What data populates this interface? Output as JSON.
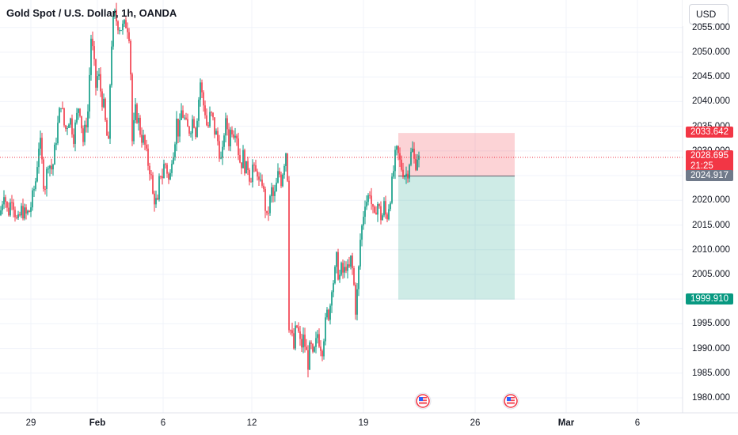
{
  "header": {
    "title": "Gold Spot / U.S. Dollar, 1h, OANDA",
    "currency_button": "USD"
  },
  "price_axis": {
    "ticks": [
      "2055.000",
      "2050.000",
      "2045.000",
      "2040.000",
      "2035.000",
      "2030.000",
      "2025.000",
      "2020.000",
      "2015.000",
      "2010.000",
      "2005.000",
      "2000.000",
      "1995.000",
      "1990.000",
      "1985.000",
      "1980.000"
    ]
  },
  "time_axis": {
    "ticks": [
      {
        "label": "29",
        "bold": false
      },
      {
        "label": "Feb",
        "bold": true
      },
      {
        "label": "6",
        "bold": false
      },
      {
        "label": "12",
        "bold": false
      },
      {
        "label": "19",
        "bold": false
      },
      {
        "label": "26",
        "bold": false
      },
      {
        "label": "Mar",
        "bold": true
      },
      {
        "label": "6",
        "bold": false
      }
    ]
  },
  "price_labels": {
    "stop_loss": {
      "value": "2033.642",
      "price": 2033.642,
      "color": "#f23645"
    },
    "current": {
      "value": "2028.695",
      "countdown": "21:25",
      "price": 2028.695,
      "color": "#f23645"
    },
    "entry": {
      "value": "2024.917",
      "price": 2024.917,
      "color": "#707a8a"
    },
    "take_profit": {
      "value": "1999.910",
      "price": 1999.91,
      "color": "#089981"
    }
  },
  "position_tool": {
    "type": "short",
    "entry": 2024.917,
    "stop": 2033.642,
    "target": 1999.91,
    "risk_color": "#f23645",
    "reward_color": "#089981"
  },
  "events": [
    {
      "icon": "us-flag-icon",
      "date": "Feb 21"
    },
    {
      "icon": "us-flag-icon",
      "date": "Feb 28"
    }
  ],
  "colors": {
    "up": "#089981",
    "down": "#f23645",
    "grid": "#f0f3fa"
  },
  "chart_data": {
    "type": "candlestick",
    "symbol": "XAUUSD",
    "interval": "1h",
    "ylim": [
      1978,
      2058
    ],
    "path": [
      [
        0,
        2017
      ],
      [
        5,
        2022
      ],
      [
        10,
        2017
      ],
      [
        15,
        2021
      ],
      [
        22,
        2015
      ],
      [
        27,
        2018
      ],
      [
        33,
        2017
      ],
      [
        38,
        2018
      ],
      [
        45,
        2024
      ],
      [
        50,
        2033
      ],
      [
        56,
        2022
      ],
      [
        61,
        2028
      ],
      [
        66,
        2026
      ],
      [
        72,
        2034
      ],
      [
        77,
        2040
      ],
      [
        82,
        2034
      ],
      [
        88,
        2037
      ],
      [
        93,
        2033
      ],
      [
        100,
        2040
      ],
      [
        105,
        2032
      ],
      [
        111,
        2038
      ],
      [
        115,
        2053
      ],
      [
        118,
        2049
      ],
      [
        121,
        2043
      ],
      [
        124,
        2046
      ],
      [
        128,
        2041
      ],
      [
        131,
        2039
      ],
      [
        134,
        2034
      ],
      [
        137,
        2031
      ],
      [
        140,
        2050
      ],
      [
        144,
        2058
      ],
      [
        148,
        2056
      ],
      [
        152,
        2055
      ],
      [
        156,
        2055
      ],
      [
        160,
        2056
      ],
      [
        164,
        2053
      ],
      [
        167,
        2032
      ],
      [
        171,
        2038
      ],
      [
        175,
        2036
      ],
      [
        178,
        2033
      ],
      [
        182,
        2032
      ],
      [
        186,
        2028
      ],
      [
        190,
        2026
      ],
      [
        193,
        2021
      ],
      [
        196,
        2020
      ],
      [
        199,
        2019
      ],
      [
        202,
        2026
      ],
      [
        205,
        2025
      ],
      [
        208,
        2028
      ],
      [
        211,
        2026
      ],
      [
        214,
        2023
      ],
      [
        217,
        2029
      ],
      [
        220,
        2031
      ],
      [
        223,
        2036
      ],
      [
        226,
        2033
      ],
      [
        229,
        2038
      ],
      [
        232,
        2037
      ],
      [
        235,
        2035
      ],
      [
        238,
        2034
      ],
      [
        241,
        2035
      ],
      [
        244,
        2037
      ],
      [
        247,
        2034
      ],
      [
        250,
        2039
      ],
      [
        253,
        2044
      ],
      [
        256,
        2040
      ],
      [
        259,
        2038
      ],
      [
        262,
        2034
      ],
      [
        265,
        2037
      ],
      [
        268,
        2037
      ],
      [
        271,
        2034
      ],
      [
        274,
        2033
      ],
      [
        277,
        2030
      ],
      [
        280,
        2027
      ],
      [
        283,
        2034
      ],
      [
        286,
        2036
      ],
      [
        289,
        2032
      ],
      [
        292,
        2035
      ],
      [
        295,
        2034
      ],
      [
        298,
        2035
      ],
      [
        301,
        2030
      ],
      [
        304,
        2027
      ],
      [
        307,
        2029
      ],
      [
        310,
        2026
      ],
      [
        313,
        2027
      ],
      [
        316,
        2024
      ],
      [
        319,
        2027
      ],
      [
        322,
        2025
      ],
      [
        325,
        2026
      ],
      [
        328,
        2022
      ],
      [
        331,
        2024
      ],
      [
        334,
        2020
      ],
      [
        337,
        2016
      ],
      [
        340,
        2019
      ],
      [
        343,
        2022
      ],
      [
        346,
        2020
      ],
      [
        349,
        2023
      ],
      [
        352,
        2026
      ],
      [
        355,
        2024
      ],
      [
        358,
        2027
      ],
      [
        361,
        2030
      ],
      [
        363,
        2025
      ],
      [
        365,
        1995
      ],
      [
        368,
        1993
      ],
      [
        371,
        1990
      ],
      [
        374,
        1995
      ],
      [
        377,
        1993
      ],
      [
        380,
        1990
      ],
      [
        383,
        1992
      ],
      [
        386,
        1990
      ],
      [
        389,
        1987
      ],
      [
        392,
        1991
      ],
      [
        395,
        1988
      ],
      [
        398,
        1990
      ],
      [
        401,
        1993
      ],
      [
        404,
        1991
      ],
      [
        407,
        1990
      ],
      [
        410,
        1994
      ],
      [
        413,
        1997
      ],
      [
        416,
        1997
      ],
      [
        419,
        2003
      ],
      [
        422,
        2004
      ],
      [
        425,
        2008
      ],
      [
        428,
        2004
      ],
      [
        431,
        2006
      ],
      [
        434,
        2005
      ],
      [
        437,
        2007
      ],
      [
        440,
        2005
      ],
      [
        443,
        2008
      ],
      [
        446,
        2005
      ],
      [
        449,
        1998
      ],
      [
        452,
        2003
      ],
      [
        455,
        2012
      ],
      [
        458,
        2016
      ],
      [
        461,
        2020
      ],
      [
        464,
        2020
      ],
      [
        467,
        2022
      ],
      [
        470,
        2018
      ],
      [
        473,
        2016
      ],
      [
        476,
        2020
      ],
      [
        479,
        2018
      ],
      [
        482,
        2016
      ],
      [
        485,
        2019
      ],
      [
        488,
        2016
      ],
      [
        491,
        2019
      ],
      [
        494,
        2022
      ],
      [
        497,
        2026
      ],
      [
        500,
        2030
      ],
      [
        503,
        2029
      ],
      [
        506,
        2027
      ],
      [
        509,
        2026
      ],
      [
        512,
        2025
      ],
      [
        515,
        2026
      ],
      [
        518,
        2029
      ],
      [
        521,
        2030
      ],
      [
        524,
        2027
      ],
      [
        527,
        2029
      ],
      [
        530,
        2028
      ]
    ]
  }
}
